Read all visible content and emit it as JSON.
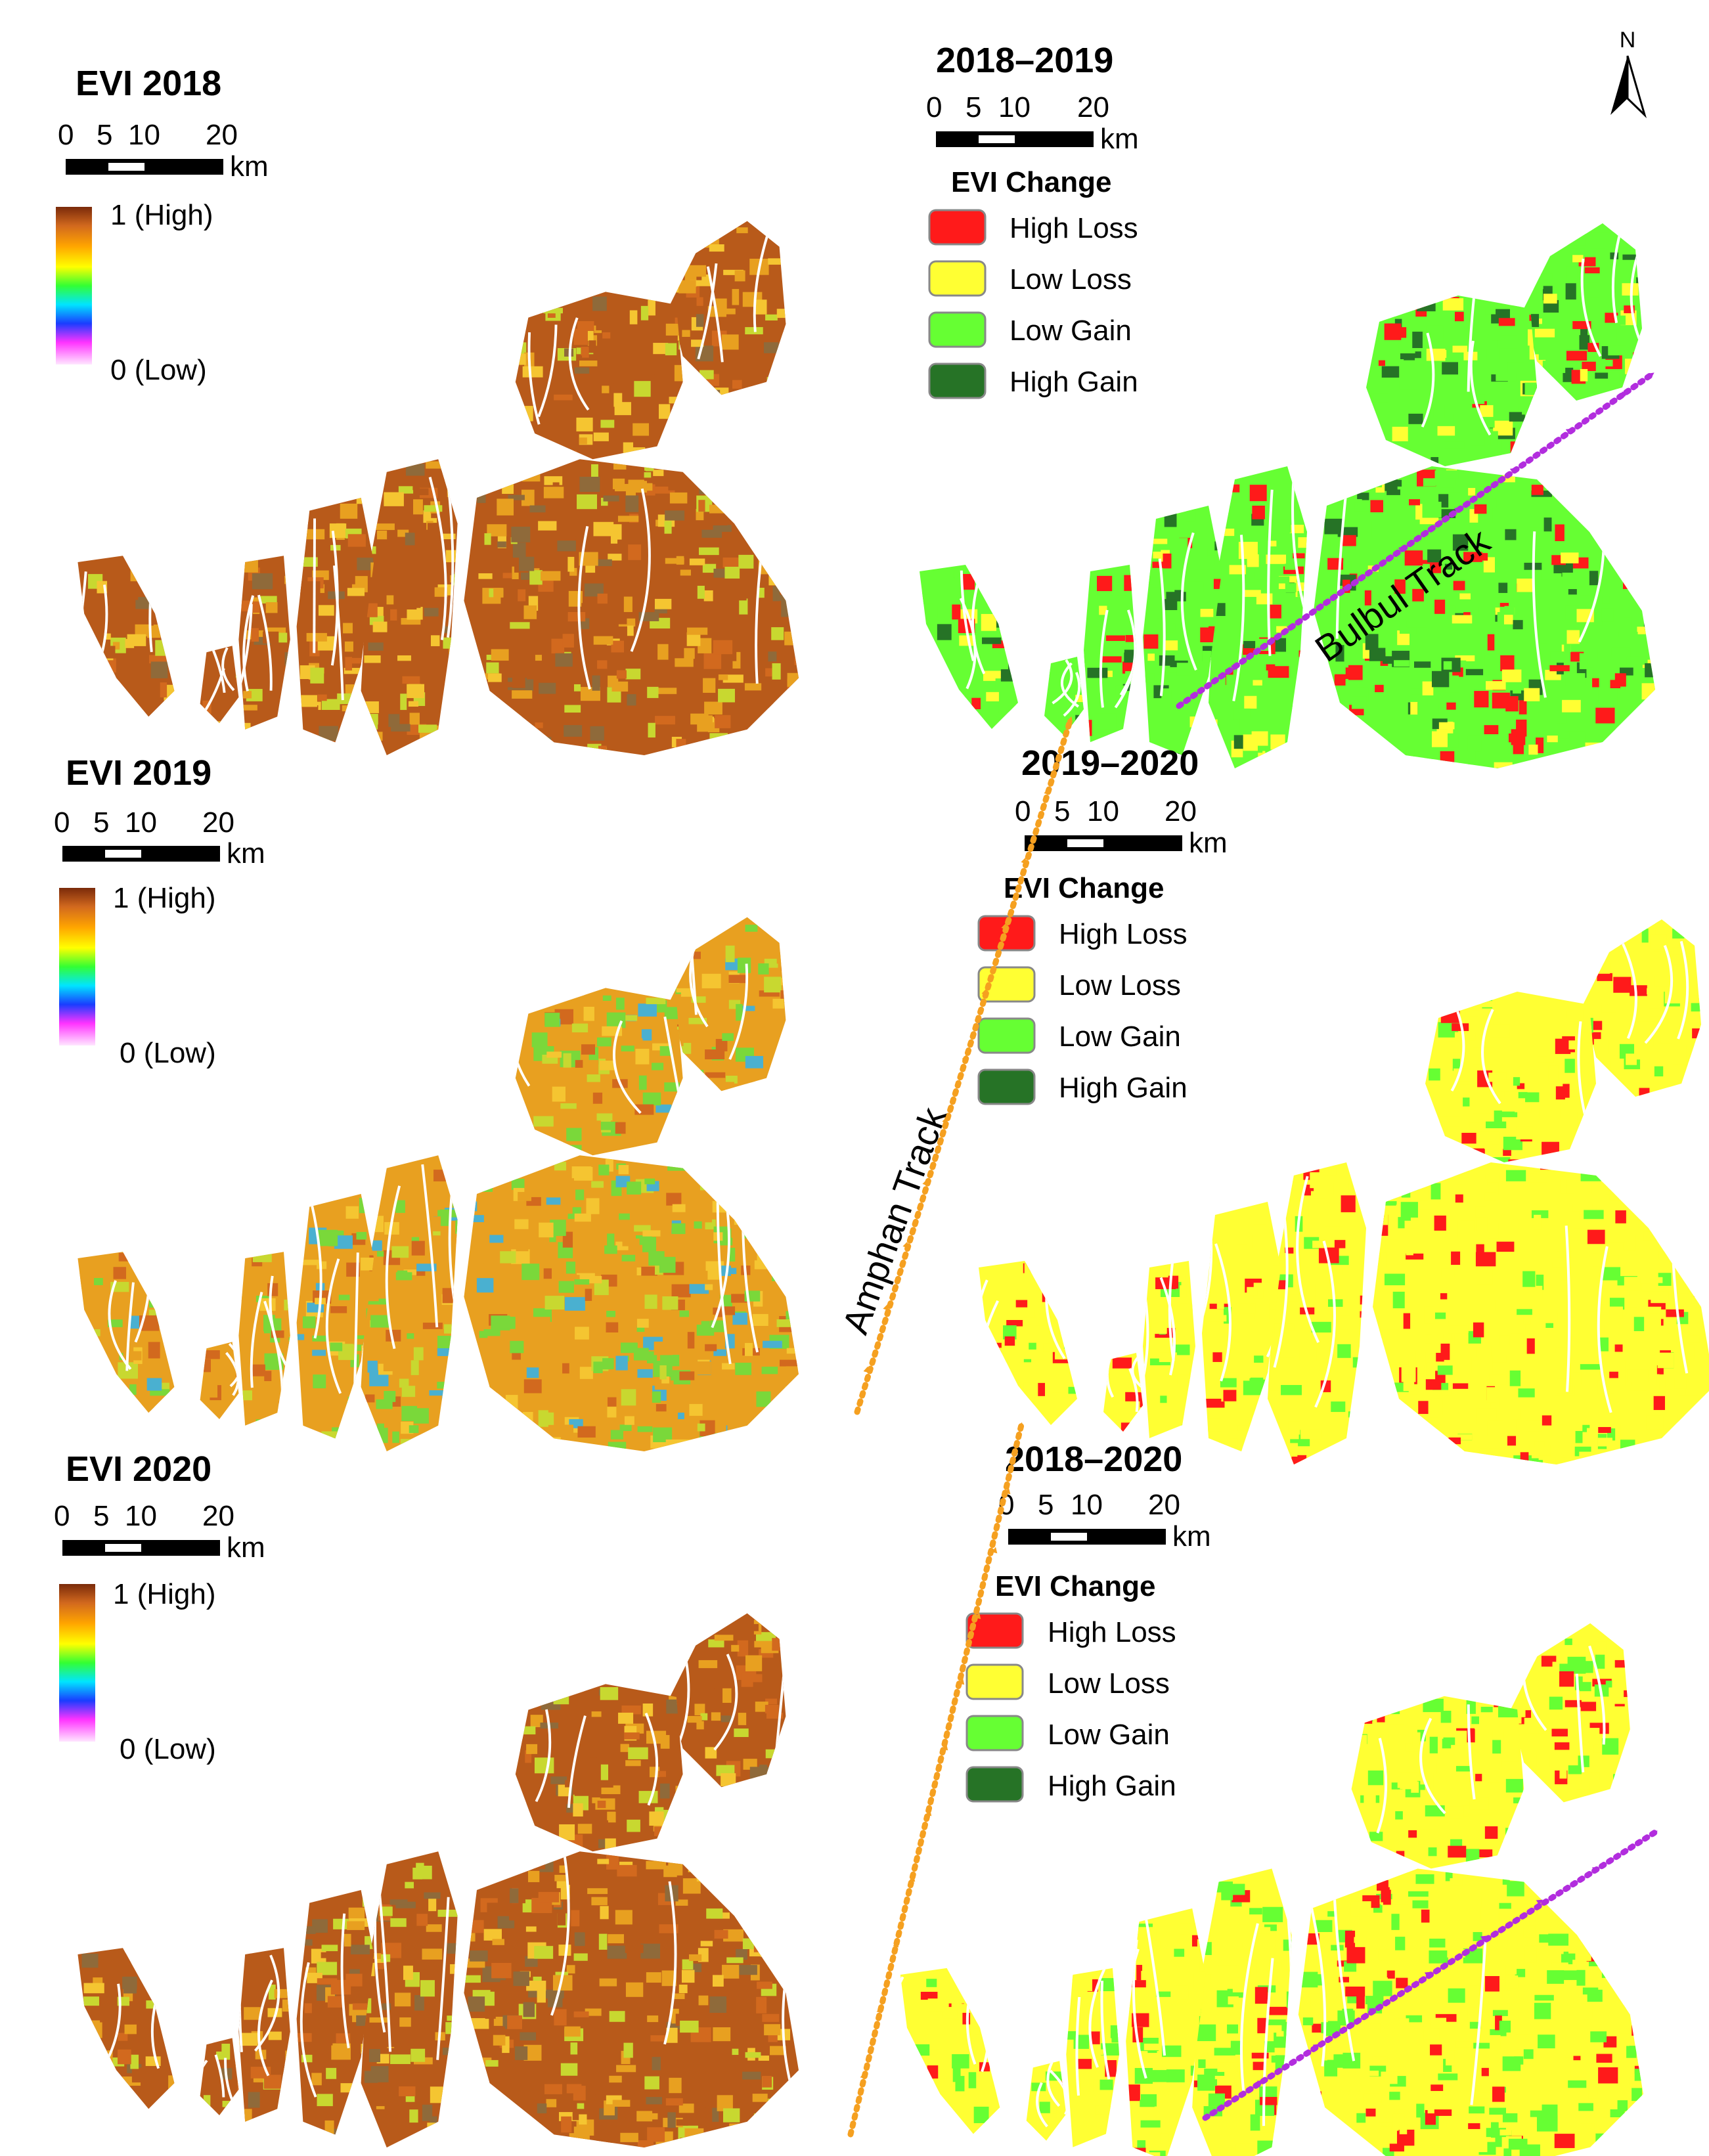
{
  "colors": {
    "high_loss": "#ff1a1a",
    "low_loss": "#ffff33",
    "low_gain": "#66ff33",
    "high_gain": "#267326",
    "amphan_track": "#f5a020",
    "bulbul_track": "#b22dde",
    "evi_low": "#ffd6ff",
    "evi_mid_blue": "#1a3dff",
    "evi_mid_green": "#33ff33",
    "evi_high": "#7a2a0a"
  },
  "north_label": "N",
  "scale_bar": {
    "ticks": [
      "0",
      "5",
      "10",
      "20"
    ],
    "unit": "km"
  },
  "evi_legend": {
    "high_label": "1 (High)",
    "low_label": "0 (Low)"
  },
  "change_legend": {
    "title": "EVI Change",
    "items": [
      "High Loss",
      "Low Loss",
      "Low Gain",
      "High Gain"
    ]
  },
  "tracks": {
    "bulbul": "Bulbul Track",
    "amphan": "Amphan Track"
  },
  "panels": [
    {
      "id": "evi-2018",
      "title": "EVI 2018",
      "kind": "evi",
      "dominant": "mix-orange"
    },
    {
      "id": "change-2018-2019",
      "title": "2018–2019",
      "kind": "change",
      "dominant": "gain-with-loss-east"
    },
    {
      "id": "evi-2019",
      "title": "EVI 2019",
      "kind": "evi",
      "dominant": "mix-green"
    },
    {
      "id": "change-2019-2020",
      "title": "2019–2020",
      "kind": "change",
      "dominant": "loss-west"
    },
    {
      "id": "evi-2020",
      "title": "EVI 2020",
      "kind": "evi",
      "dominant": "mix-orange"
    },
    {
      "id": "change-2018-2020",
      "title": "2018–2020",
      "kind": "change",
      "dominant": "mixed"
    }
  ]
}
